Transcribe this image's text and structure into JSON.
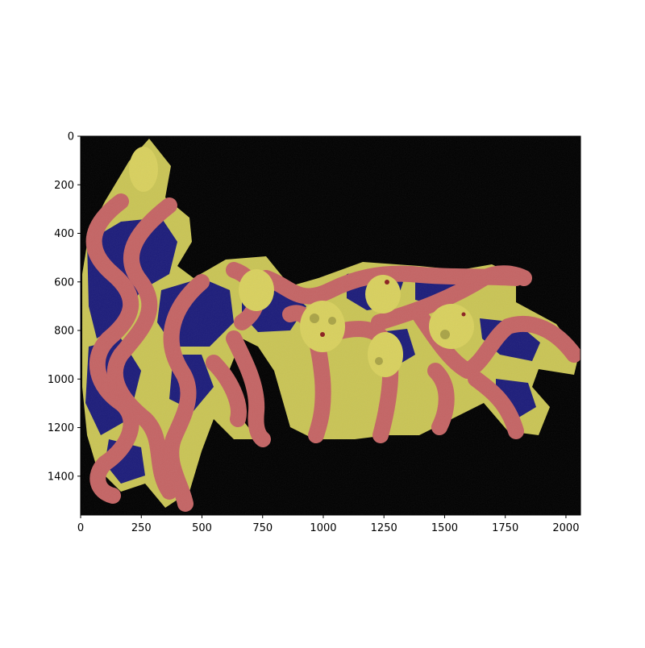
{
  "image": {
    "kind": "segmentation-overlay",
    "background_color": "#000000",
    "classes": [
      {
        "name": "class-yellow",
        "color": "#cfca5a"
      },
      {
        "name": "class-red",
        "color": "#c96a6a"
      },
      {
        "name": "class-blue",
        "color": "#1f1f80"
      }
    ]
  },
  "axes": {
    "x_ticks": [
      "0",
      "250",
      "500",
      "750",
      "1000",
      "1250",
      "1500",
      "1750",
      "2000"
    ],
    "y_ticks": [
      "0",
      "200",
      "400",
      "600",
      "800",
      "1000",
      "1200",
      "1400"
    ],
    "x_range": [
      0,
      2060
    ],
    "y_range": [
      1560,
      0
    ]
  }
}
